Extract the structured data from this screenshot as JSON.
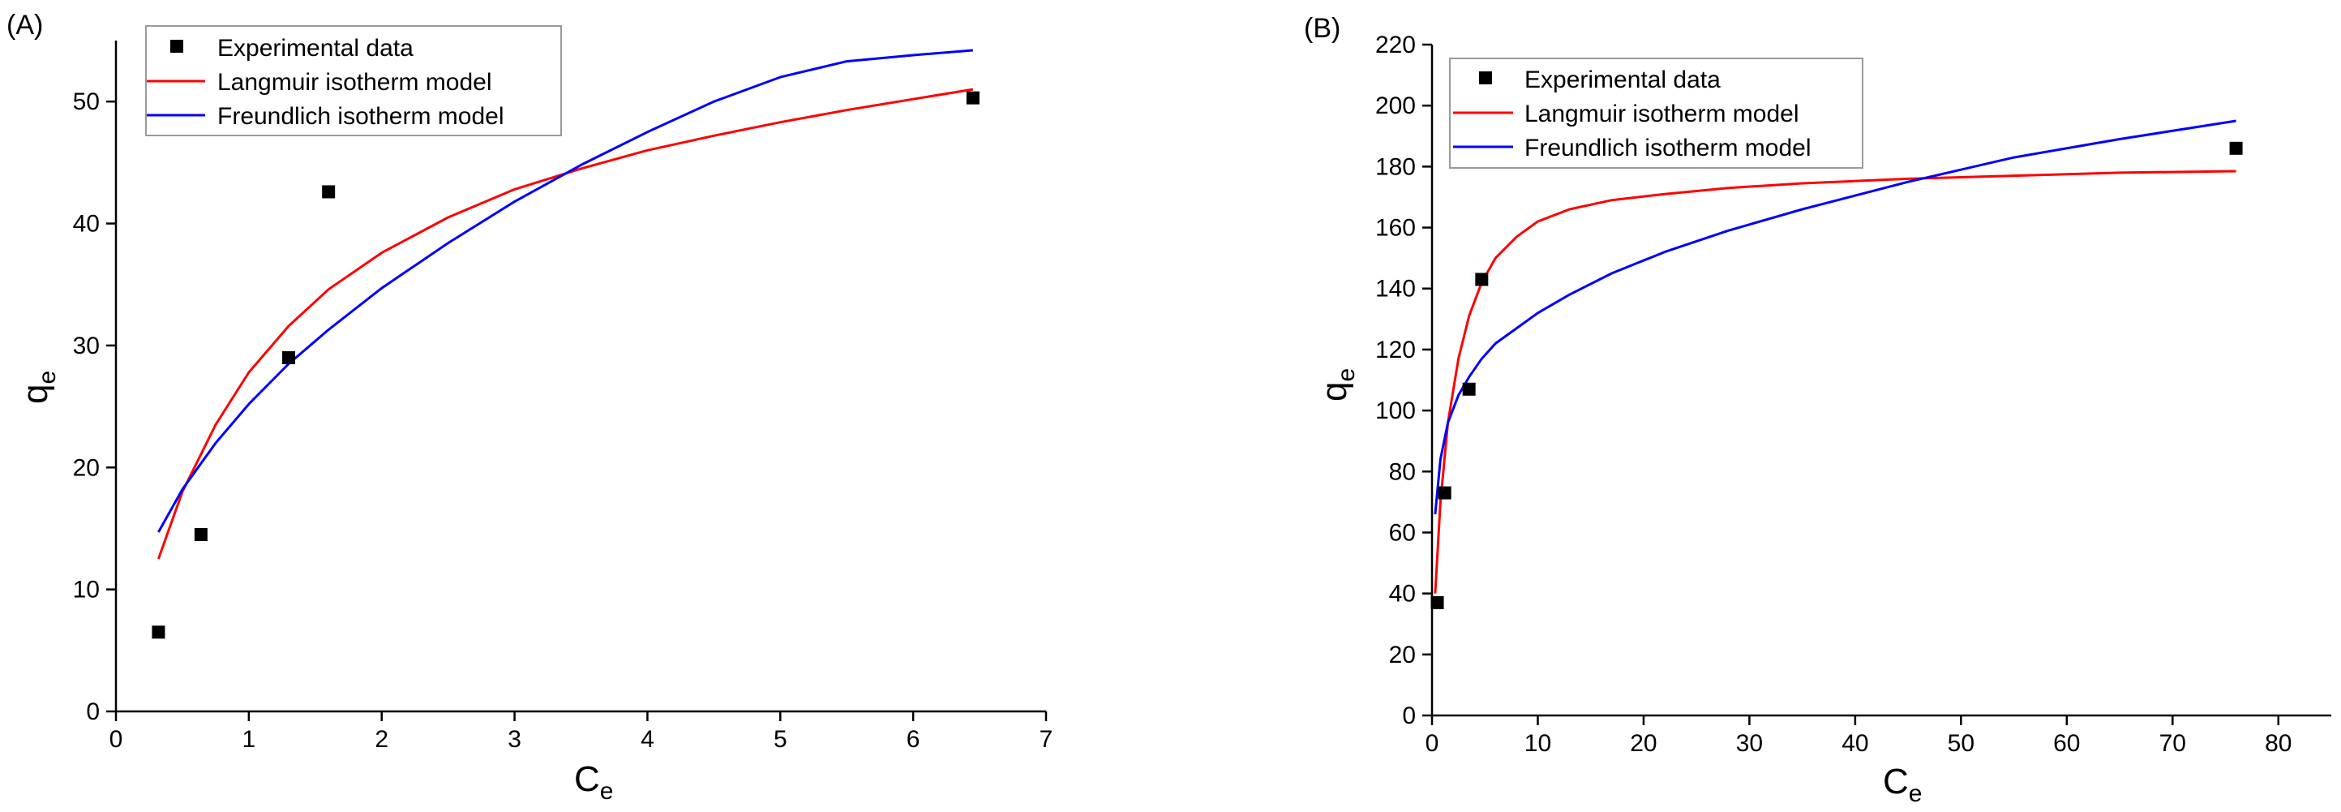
{
  "chart_data": [
    {
      "type": "scatter",
      "panel_label": "(A)",
      "xlabel": "C",
      "xlabel_sub": "e",
      "ylabel": "q",
      "ylabel_sub": "e",
      "xlim": [
        0,
        7
      ],
      "ylim": [
        0,
        55
      ],
      "xticks": [
        0,
        1,
        2,
        3,
        4,
        5,
        6,
        7
      ],
      "yticks": [
        0,
        10,
        20,
        30,
        40,
        50
      ],
      "grid": false,
      "legend_position": "top-left",
      "legend": [
        "Experimental data",
        "Langmuir isotherm model",
        "Freundlich isotherm model"
      ],
      "series": [
        {
          "name": "Experimental data",
          "kind": "points",
          "color": "#000000",
          "x": [
            0.32,
            0.64,
            1.3,
            1.6,
            6.45
          ],
          "y": [
            6.5,
            14.5,
            29.0,
            42.6,
            50.3
          ]
        },
        {
          "name": "Langmuir isotherm model",
          "kind": "line",
          "color": "#ff0000",
          "x": [
            0.32,
            0.5,
            0.75,
            1.0,
            1.3,
            1.6,
            2.0,
            2.5,
            3.0,
            3.5,
            4.0,
            4.5,
            5.0,
            5.5,
            6.0,
            6.45
          ],
          "y": [
            12.5,
            18.0,
            23.5,
            27.8,
            31.6,
            34.6,
            37.6,
            40.5,
            42.8,
            44.5,
            46.0,
            47.2,
            48.3,
            49.3,
            50.2,
            51.0
          ]
        },
        {
          "name": "Freundlich isotherm model",
          "kind": "line",
          "color": "#0000ff",
          "x": [
            0.32,
            0.5,
            0.75,
            1.0,
            1.3,
            1.6,
            2.0,
            2.5,
            3.0,
            3.5,
            4.0,
            4.5,
            5.0,
            5.5,
            6.0,
            6.45
          ],
          "y": [
            14.7,
            18.2,
            22.0,
            25.2,
            28.5,
            31.3,
            34.7,
            38.4,
            41.8,
            44.8,
            47.5,
            50.0,
            52.0,
            53.3,
            53.8,
            54.2
          ]
        }
      ]
    },
    {
      "type": "scatter",
      "panel_label": "(B)",
      "xlabel": "C",
      "xlabel_sub": "e",
      "ylabel": "q",
      "ylabel_sub": "e",
      "xlim": [
        0,
        85
      ],
      "ylim": [
        0,
        220
      ],
      "xticks": [
        0,
        10,
        20,
        30,
        40,
        50,
        60,
        70,
        80
      ],
      "yticks": [
        0,
        20,
        40,
        60,
        80,
        100,
        120,
        140,
        160,
        180,
        200,
        220
      ],
      "grid": false,
      "legend_position": "top-left",
      "legend": [
        "Experimental data",
        "Langmuir isotherm model",
        "Freundlich isotherm model"
      ],
      "series": [
        {
          "name": "Experimental data",
          "kind": "points",
          "color": "#000000",
          "x": [
            0.5,
            1.2,
            3.5,
            4.7,
            76
          ],
          "y": [
            37,
            73,
            107,
            143,
            186
          ]
        },
        {
          "name": "Langmuir isotherm model",
          "kind": "line",
          "color": "#ff0000",
          "x": [
            0.3,
            0.8,
            1.5,
            2.5,
            3.5,
            4.7,
            6,
            8,
            10,
            13,
            17,
            22,
            28,
            35,
            45,
            55,
            65,
            76
          ],
          "y": [
            40,
            70,
            96,
            117,
            131,
            142,
            150,
            157,
            162,
            166,
            169,
            171,
            173,
            174.5,
            176,
            177,
            178,
            178.5
          ]
        },
        {
          "name": "Freundlich isotherm model",
          "kind": "line",
          "color": "#0000ff",
          "x": [
            0.3,
            0.8,
            1.5,
            2.5,
            3.5,
            4.7,
            6,
            8,
            10,
            13,
            17,
            22,
            28,
            35,
            45,
            55,
            65,
            76
          ],
          "y": [
            66,
            84,
            96,
            105,
            111,
            117,
            122,
            127,
            132,
            138,
            145,
            152,
            159,
            166,
            175,
            183,
            189,
            195
          ]
        }
      ]
    }
  ]
}
